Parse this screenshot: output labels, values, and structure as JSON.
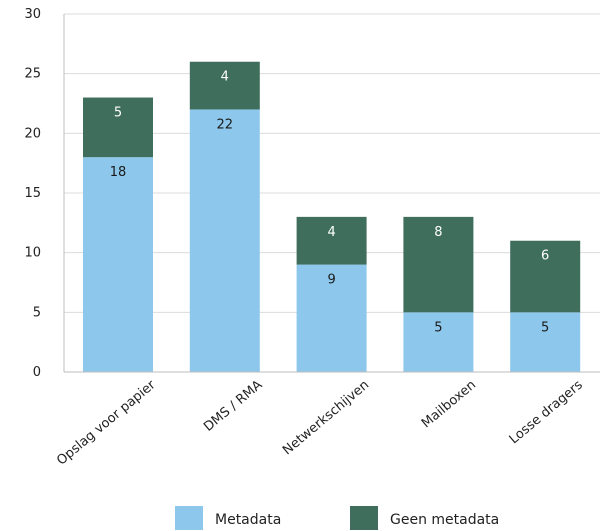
{
  "chart_data": {
    "type": "bar",
    "stacked": true,
    "categories": [
      "Opslag voor papier",
      "DMS / RMA",
      "Netwerkschijven",
      "Mailboxen",
      "Losse dragers"
    ],
    "series": [
      {
        "name": "Metadata",
        "values": [
          18,
          22,
          9,
          5,
          5
        ],
        "color": "#8dc8ec"
      },
      {
        "name": "Geen metadata",
        "values": [
          5,
          4,
          4,
          8,
          6
        ],
        "color": "#3f6e5d"
      }
    ],
    "ylim": [
      0,
      30
    ],
    "yticks": [
      0,
      5,
      10,
      15,
      20,
      25,
      30
    ],
    "grid": true,
    "legend": "bottom",
    "title": "",
    "xlabel": "",
    "ylabel": ""
  }
}
